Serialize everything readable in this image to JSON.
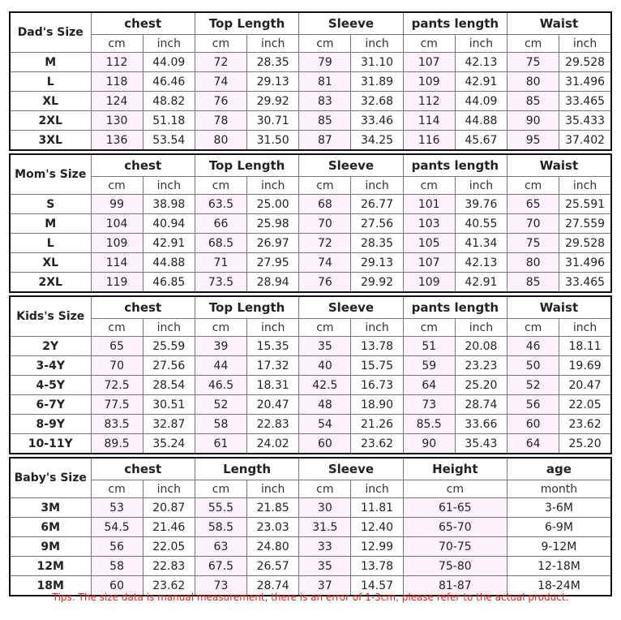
{
  "tables": [
    {
      "size_label": "Dad's Size",
      "groups": [
        {
          "name": "chest",
          "units": [
            "cm",
            "inch"
          ]
        },
        {
          "name": "Top Length",
          "units": [
            "cm",
            "inch"
          ]
        },
        {
          "name": "Sleeve",
          "units": [
            "cm",
            "inch"
          ]
        },
        {
          "name": "pants length",
          "units": [
            "cm",
            "inch"
          ]
        },
        {
          "name": "Waist",
          "units": [
            "cm",
            "inch"
          ]
        }
      ],
      "rows": [
        [
          "M",
          "112",
          "44.09",
          "72",
          "28.35",
          "79",
          "31.10",
          "107",
          "42.13",
          "75",
          "29.528"
        ],
        [
          "L",
          "118",
          "46.46",
          "74",
          "29.13",
          "81",
          "31.89",
          "109",
          "42.91",
          "80",
          "31.496"
        ],
        [
          "XL",
          "124",
          "48.82",
          "76",
          "29.92",
          "83",
          "32.68",
          "112",
          "44.09",
          "85",
          "33.465"
        ],
        [
          "2XL",
          "130",
          "51.18",
          "78",
          "30.71",
          "85",
          "33.46",
          "114",
          "44.88",
          "90",
          "35.433"
        ],
        [
          "3XL",
          "136",
          "53.54",
          "80",
          "31.50",
          "87",
          "34.25",
          "116",
          "45.67",
          "95",
          "37.402"
        ]
      ]
    },
    {
      "size_label": "Mom's Size",
      "groups": [
        {
          "name": "chest",
          "units": [
            "cm",
            "inch"
          ]
        },
        {
          "name": "Top Length",
          "units": [
            "cm",
            "inch"
          ]
        },
        {
          "name": "Sleeve",
          "units": [
            "cm",
            "inch"
          ]
        },
        {
          "name": "pants length",
          "units": [
            "cm",
            "inch"
          ]
        },
        {
          "name": "Waist",
          "units": [
            "cm",
            "inch"
          ]
        }
      ],
      "rows": [
        [
          "S",
          "99",
          "38.98",
          "63.5",
          "25.00",
          "68",
          "26.77",
          "101",
          "39.76",
          "65",
          "25.591"
        ],
        [
          "M",
          "104",
          "40.94",
          "66",
          "25.98",
          "70",
          "27.56",
          "103",
          "40.55",
          "70",
          "27.559"
        ],
        [
          "L",
          "109",
          "42.91",
          "68.5",
          "26.97",
          "72",
          "28.35",
          "105",
          "41.34",
          "75",
          "29.528"
        ],
        [
          "XL",
          "114",
          "44.88",
          "71",
          "27.95",
          "74",
          "29.13",
          "107",
          "42.13",
          "80",
          "31.496"
        ],
        [
          "2XL",
          "119",
          "46.85",
          "73.5",
          "28.94",
          "76",
          "29.92",
          "109",
          "42.91",
          "85",
          "33.465"
        ]
      ]
    },
    {
      "size_label": "Kids's Size",
      "groups": [
        {
          "name": "chest",
          "units": [
            "cm",
            "inch"
          ]
        },
        {
          "name": "Top Length",
          "units": [
            "cm",
            "inch"
          ]
        },
        {
          "name": "Sleeve",
          "units": [
            "cm",
            "inch"
          ]
        },
        {
          "name": "pants length",
          "units": [
            "cm",
            "inch"
          ]
        },
        {
          "name": "Waist",
          "units": [
            "cm",
            "inch"
          ]
        }
      ],
      "rows": [
        [
          "2Y",
          "65",
          "25.59",
          "39",
          "15.35",
          "35",
          "13.78",
          "51",
          "20.08",
          "46",
          "18.11"
        ],
        [
          "3-4Y",
          "70",
          "27.56",
          "44",
          "17.32",
          "40",
          "15.75",
          "59",
          "23.23",
          "50",
          "19.69"
        ],
        [
          "4-5Y",
          "72.5",
          "28.54",
          "46.5",
          "18.31",
          "42.5",
          "16.73",
          "64",
          "25.20",
          "52",
          "20.47"
        ],
        [
          "6-7Y",
          "77.5",
          "30.51",
          "52",
          "20.47",
          "48",
          "18.90",
          "73",
          "28.74",
          "56",
          "22.05"
        ],
        [
          "8-9Y",
          "83.5",
          "32.87",
          "58",
          "22.83",
          "54",
          "21.26",
          "85.5",
          "33.66",
          "60",
          "23.62"
        ],
        [
          "10-11Y",
          "89.5",
          "35.24",
          "61",
          "24.02",
          "60",
          "23.62",
          "90",
          "35.43",
          "64",
          "25.20"
        ]
      ]
    },
    {
      "size_label": "Baby's Size",
      "groups": [
        {
          "name": "chest",
          "units": [
            "cm",
            "inch"
          ]
        },
        {
          "name": "Length",
          "units": [
            "cm",
            "inch"
          ]
        },
        {
          "name": "Sleeve",
          "units": [
            "cm",
            "inch"
          ]
        },
        {
          "name": "Height",
          "units": [
            "cm"
          ]
        },
        {
          "name": "age",
          "units": [
            "month"
          ]
        }
      ],
      "rows": [
        [
          "3M",
          "53",
          "20.87",
          "55.5",
          "21.85",
          "30",
          "11.81",
          "61-65",
          "3-6M"
        ],
        [
          "6M",
          "54.5",
          "21.46",
          "58.5",
          "23.03",
          "31.5",
          "12.40",
          "65-70",
          "6-9M"
        ],
        [
          "9M",
          "56",
          "22.05",
          "63",
          "24.80",
          "33",
          "12.99",
          "70-75",
          "9-12M"
        ],
        [
          "12M",
          "58",
          "22.83",
          "67.5",
          "26.57",
          "35",
          "13.78",
          "75-80",
          "12-18M"
        ],
        [
          "18M",
          "60",
          "23.62",
          "73",
          "28.74",
          "37",
          "14.57",
          "81-87",
          "18-24M"
        ]
      ]
    }
  ],
  "tip": "Tips: The size data is manual measurement, there is an error of 1-3cm, please refer to the actual product."
}
